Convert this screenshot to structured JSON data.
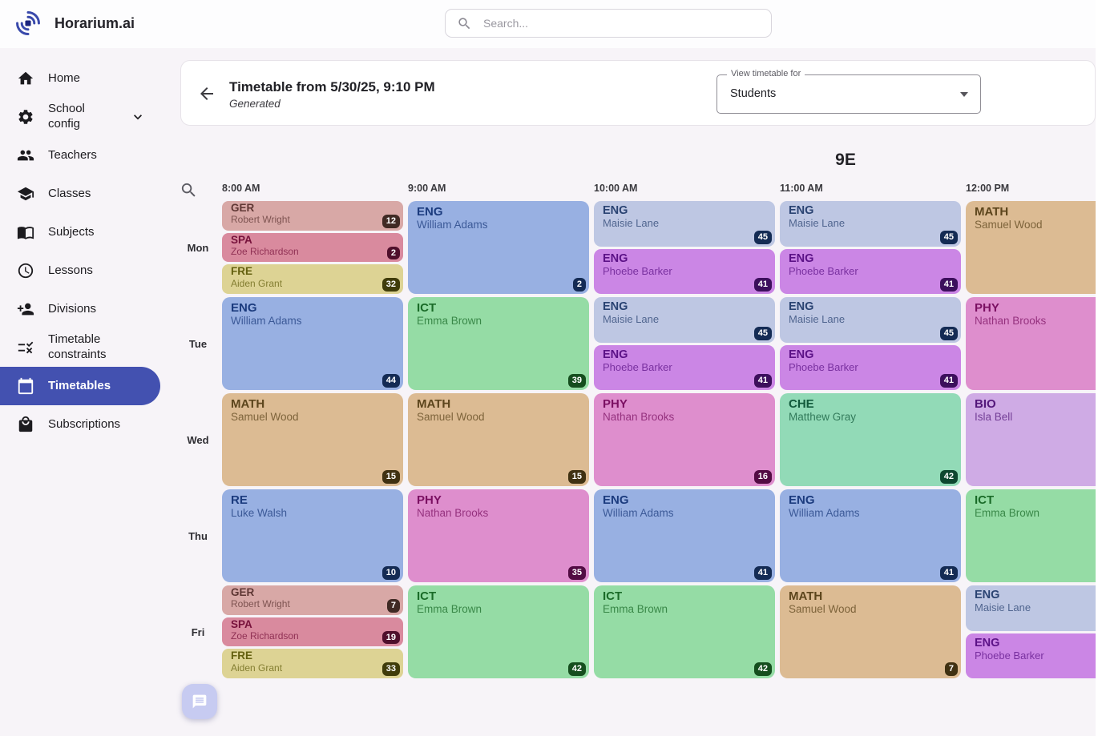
{
  "app": {
    "name": "Horarium.ai",
    "logo_icon": "horarium-logo-icon"
  },
  "topbar": {
    "search_placeholder": "Search..."
  },
  "sidebar": {
    "selected_color": "#4351b0",
    "items": [
      {
        "label": "Home",
        "icon": "home-icon",
        "selected": false,
        "chevron": false
      },
      {
        "label": "School config",
        "icon": "gear-icon",
        "selected": false,
        "chevron": true
      },
      {
        "label": "Teachers",
        "icon": "people-icon",
        "selected": false,
        "chevron": false
      },
      {
        "label": "Classes",
        "icon": "graduation-cap-icon",
        "selected": false,
        "chevron": false
      },
      {
        "label": "Subjects",
        "icon": "book-icon",
        "selected": false,
        "chevron": false
      },
      {
        "label": "Lessons",
        "icon": "clock-icon",
        "selected": false,
        "chevron": false
      },
      {
        "label": "Divisions",
        "icon": "person-add-icon",
        "selected": false,
        "chevron": false
      },
      {
        "label": "Timetable constraints",
        "icon": "rule-icon",
        "selected": false,
        "chevron": false
      },
      {
        "label": "Timetables",
        "icon": "calendar-icon",
        "selected": true,
        "chevron": false
      },
      {
        "label": "Subscriptions",
        "icon": "bag-icon",
        "selected": false,
        "chevron": false
      }
    ]
  },
  "header": {
    "back_icon": "back-arrow-icon",
    "title": "Timetable from 5/30/25, 9:10 PM",
    "subtitle": "Generated",
    "view_select": {
      "label": "View timetable for",
      "value": "Students"
    }
  },
  "timetable": {
    "class_name": "9E",
    "times": [
      "8:00 AM",
      "9:00 AM",
      "10:00 AM",
      "11:00 AM",
      "12:00 PM"
    ],
    "days": [
      "Mon",
      "Tue",
      "Wed",
      "Thu",
      "Fri"
    ],
    "palette": {
      "rose": {
        "bg": "#d8a8a6",
        "fg": "#5f3734",
        "badge": "#402a24"
      },
      "red": {
        "bg": "#d98a9e",
        "fg": "#77123b",
        "badge": "#4f0f2b"
      },
      "khaki": {
        "bg": "#ddd394",
        "fg": "#64600f",
        "badge": "#403c0a"
      },
      "blue": {
        "bg": "#98b0e2",
        "fg": "#1b3b7e",
        "badge": "#142b54"
      },
      "lightblue": {
        "bg": "#bec7e3",
        "fg": "#2a4372",
        "badge": "#142b54"
      },
      "orchid": {
        "bg": "#cb86e5",
        "fg": "#5c1287",
        "badge": "#3c0f5c"
      },
      "green": {
        "bg": "#95dca5",
        "fg": "#1a6b28",
        "badge": "#154e1e"
      },
      "tan": {
        "bg": "#dcbb93",
        "fg": "#5c451c",
        "badge": "#403112"
      },
      "pink": {
        "bg": "#de8ecd",
        "fg": "#7b1062",
        "badge": "#520c43"
      },
      "mint": {
        "bg": "#92dab7",
        "fg": "#11593b",
        "badge": "#0d472f"
      },
      "lavender": {
        "bg": "#cfabe5",
        "fg": "#53177a",
        "badge": "#3a1157"
      }
    },
    "grid": [
      {
        "day": "Mon",
        "columns": [
          [
            {
              "subject": "GER",
              "teacher": "Robert Wright",
              "badge": "12",
              "color": "rose"
            },
            {
              "subject": "SPA",
              "teacher": "Zoe Richardson",
              "badge": "2",
              "color": "red"
            },
            {
              "subject": "FRE",
              "teacher": "Aiden Grant",
              "badge": "32",
              "color": "khaki"
            }
          ],
          [
            {
              "subject": "ENG",
              "teacher": "William Adams",
              "badge": "2",
              "color": "blue"
            }
          ],
          [
            {
              "subject": "ENG",
              "teacher": "Maisie Lane",
              "badge": "45",
              "color": "lightblue"
            },
            {
              "subject": "ENG",
              "teacher": "Phoebe Barker",
              "badge": "41",
              "color": "orchid"
            }
          ],
          [
            {
              "subject": "ENG",
              "teacher": "Maisie Lane",
              "badge": "45",
              "color": "lightblue"
            },
            {
              "subject": "ENG",
              "teacher": "Phoebe Barker",
              "badge": "41",
              "color": "orchid"
            }
          ],
          [
            {
              "subject": "MATH",
              "teacher": "Samuel Wood",
              "badge": null,
              "color": "tan"
            }
          ]
        ]
      },
      {
        "day": "Tue",
        "columns": [
          [
            {
              "subject": "ENG",
              "teacher": "William Adams",
              "badge": "44",
              "color": "blue"
            }
          ],
          [
            {
              "subject": "ICT",
              "teacher": "Emma Brown",
              "badge": "39",
              "color": "green"
            }
          ],
          [
            {
              "subject": "ENG",
              "teacher": "Maisie Lane",
              "badge": "45",
              "color": "lightblue"
            },
            {
              "subject": "ENG",
              "teacher": "Phoebe Barker",
              "badge": "41",
              "color": "orchid"
            }
          ],
          [
            {
              "subject": "ENG",
              "teacher": "Maisie Lane",
              "badge": "45",
              "color": "lightblue"
            },
            {
              "subject": "ENG",
              "teacher": "Phoebe Barker",
              "badge": "41",
              "color": "orchid"
            }
          ],
          [
            {
              "subject": "PHY",
              "teacher": "Nathan Brooks",
              "badge": null,
              "color": "pink"
            }
          ]
        ]
      },
      {
        "day": "Wed",
        "columns": [
          [
            {
              "subject": "MATH",
              "teacher": "Samuel Wood",
              "badge": "15",
              "color": "tan"
            }
          ],
          [
            {
              "subject": "MATH",
              "teacher": "Samuel Wood",
              "badge": "15",
              "color": "tan"
            }
          ],
          [
            {
              "subject": "PHY",
              "teacher": "Nathan Brooks",
              "badge": "16",
              "color": "pink"
            }
          ],
          [
            {
              "subject": "CHE",
              "teacher": "Matthew Gray",
              "badge": "42",
              "color": "mint"
            }
          ],
          [
            {
              "subject": "BIO",
              "teacher": "Isla Bell",
              "badge": null,
              "color": "lavender"
            }
          ]
        ]
      },
      {
        "day": "Thu",
        "columns": [
          [
            {
              "subject": "RE",
              "teacher": "Luke Walsh",
              "badge": "10",
              "color": "blue"
            }
          ],
          [
            {
              "subject": "PHY",
              "teacher": "Nathan Brooks",
              "badge": "35",
              "color": "pink"
            }
          ],
          [
            {
              "subject": "ENG",
              "teacher": "William Adams",
              "badge": "41",
              "color": "blue"
            }
          ],
          [
            {
              "subject": "ENG",
              "teacher": "William Adams",
              "badge": "41",
              "color": "blue"
            }
          ],
          [
            {
              "subject": "ICT",
              "teacher": "Emma Brown",
              "badge": null,
              "color": "green"
            }
          ]
        ]
      },
      {
        "day": "Fri",
        "columns": [
          [
            {
              "subject": "GER",
              "teacher": "Robert Wright",
              "badge": "7",
              "color": "rose"
            },
            {
              "subject": "SPA",
              "teacher": "Zoe Richardson",
              "badge": "19",
              "color": "red"
            },
            {
              "subject": "FRE",
              "teacher": "Aiden Grant",
              "badge": "33",
              "color": "khaki"
            }
          ],
          [
            {
              "subject": "ICT",
              "teacher": "Emma Brown",
              "badge": "42",
              "color": "green"
            }
          ],
          [
            {
              "subject": "ICT",
              "teacher": "Emma Brown",
              "badge": "42",
              "color": "green"
            }
          ],
          [
            {
              "subject": "MATH",
              "teacher": "Samuel Wood",
              "badge": "7",
              "color": "tan"
            }
          ],
          [
            {
              "subject": "ENG",
              "teacher": "Maisie Lane",
              "badge": null,
              "color": "lightblue"
            },
            {
              "subject": "ENG",
              "teacher": "Phoebe Barker",
              "badge": null,
              "color": "orchid"
            }
          ]
        ]
      }
    ]
  },
  "fab": {
    "icon": "chat-icon"
  }
}
